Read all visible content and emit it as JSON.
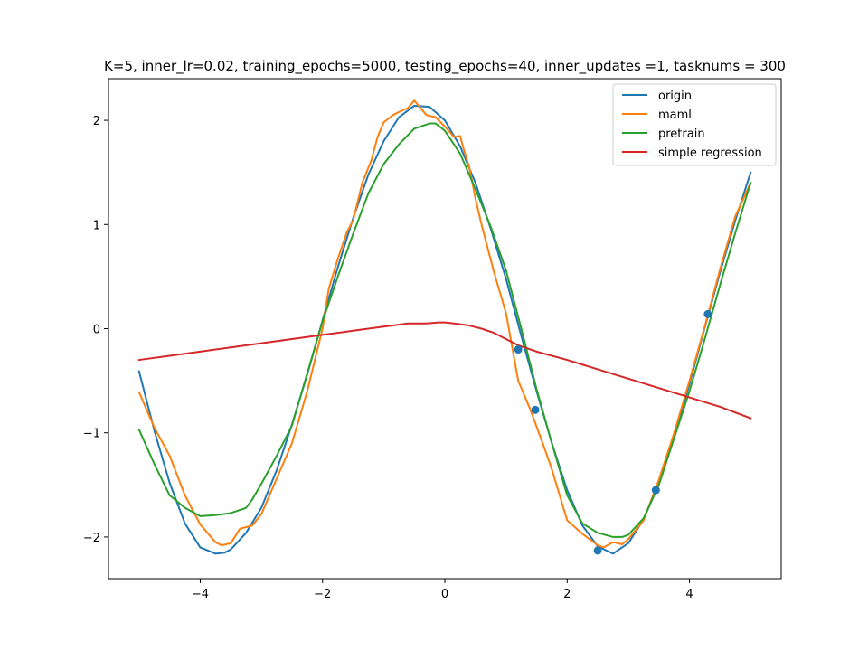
{
  "chart_data": {
    "type": "line",
    "title": "K=5, inner_lr=0.02, training_epochs=5000, testing_epochs=40, inner_updates =1, tasknums = 300",
    "xlabel": "",
    "ylabel": "",
    "xlim": [
      -5.5,
      5.5
    ],
    "ylim": [
      -2.4,
      2.4
    ],
    "xticks": [
      -4,
      -2,
      0,
      2,
      4
    ],
    "yticks": [
      -2,
      -1,
      0,
      1,
      2
    ],
    "xtick_labels": [
      "−4",
      "−2",
      "0",
      "2",
      "4"
    ],
    "ytick_labels": [
      "−2",
      "−1",
      "0",
      "1",
      "2"
    ],
    "grid": false,
    "legend_position": "top-right",
    "series": [
      {
        "name": "origin",
        "color": "#1f77b4",
        "x": [
          -5.0,
          -4.75,
          -4.5,
          -4.25,
          -4.0,
          -3.75,
          -3.6,
          -3.5,
          -3.25,
          -3.0,
          -2.75,
          -2.5,
          -2.25,
          -2.0,
          -1.75,
          -1.5,
          -1.25,
          -1.0,
          -0.75,
          -0.5,
          -0.25,
          0.0,
          0.25,
          0.5,
          0.75,
          1.0,
          1.25,
          1.5,
          1.75,
          2.0,
          2.25,
          2.5,
          2.75,
          3.0,
          3.25,
          3.5,
          3.75,
          4.0,
          4.25,
          4.5,
          4.75,
          5.0
        ],
        "y": [
          -0.41,
          -0.98,
          -1.48,
          -1.87,
          -2.1,
          -2.16,
          -2.15,
          -2.12,
          -1.96,
          -1.72,
          -1.36,
          -0.92,
          -0.44,
          0.08,
          0.59,
          1.06,
          1.48,
          1.8,
          2.03,
          2.14,
          2.13,
          2.0,
          1.75,
          1.4,
          0.96,
          0.48,
          -0.07,
          -0.6,
          -1.1,
          -1.55,
          -1.89,
          -2.09,
          -2.16,
          -2.06,
          -1.83,
          -1.49,
          -1.04,
          -0.53,
          0.01,
          0.54,
          1.04,
          1.5
        ]
      },
      {
        "name": "maml",
        "color": "#ff7f0e",
        "x": [
          -5.0,
          -4.75,
          -4.5,
          -4.25,
          -4.0,
          -3.75,
          -3.65,
          -3.5,
          -3.35,
          -3.15,
          -3.0,
          -2.75,
          -2.5,
          -2.25,
          -2.0,
          -1.9,
          -1.75,
          -1.6,
          -1.5,
          -1.35,
          -1.2,
          -1.1,
          -1.0,
          -0.85,
          -0.75,
          -0.6,
          -0.5,
          -0.4,
          -0.3,
          -0.15,
          0.0,
          0.15,
          0.25,
          0.3,
          0.4,
          0.5,
          0.6,
          0.8,
          1.0,
          1.2,
          1.4,
          1.6,
          1.75,
          2.0,
          2.25,
          2.5,
          2.6,
          2.75,
          2.9,
          3.0,
          3.25,
          3.5,
          3.75,
          4.0,
          4.25,
          4.5,
          4.75,
          5.0
        ],
        "y": [
          -0.61,
          -0.95,
          -1.22,
          -1.6,
          -1.88,
          -2.05,
          -2.08,
          -2.06,
          -1.92,
          -1.89,
          -1.78,
          -1.44,
          -1.1,
          -0.6,
          0.0,
          0.38,
          0.67,
          0.93,
          1.04,
          1.4,
          1.62,
          1.84,
          1.98,
          2.05,
          2.08,
          2.12,
          2.19,
          2.12,
          2.05,
          2.03,
          1.94,
          1.84,
          1.85,
          1.74,
          1.55,
          1.25,
          1.0,
          0.55,
          0.15,
          -0.5,
          -0.78,
          -1.1,
          -1.35,
          -1.84,
          -1.97,
          -2.08,
          -2.1,
          -2.05,
          -2.07,
          -2.02,
          -1.84,
          -1.45,
          -1.0,
          -0.5,
          0.02,
          0.57,
          1.08,
          1.4
        ]
      },
      {
        "name": "pretrain",
        "color": "#2ca02c",
        "x": [
          -5.0,
          -4.75,
          -4.5,
          -4.25,
          -4.0,
          -3.75,
          -3.5,
          -3.25,
          -3.15,
          -3.0,
          -2.75,
          -2.5,
          -2.25,
          -2.0,
          -1.75,
          -1.5,
          -1.25,
          -1.0,
          -0.75,
          -0.5,
          -0.25,
          -0.15,
          0.0,
          0.25,
          0.5,
          0.75,
          1.0,
          1.25,
          1.5,
          1.75,
          2.0,
          2.25,
          2.5,
          2.75,
          2.9,
          3.0,
          3.25,
          3.5,
          3.75,
          4.0,
          4.25,
          4.5,
          4.75,
          5.0
        ],
        "y": [
          -0.97,
          -1.3,
          -1.6,
          -1.72,
          -1.8,
          -1.79,
          -1.77,
          -1.72,
          -1.64,
          -1.49,
          -1.22,
          -0.93,
          -0.43,
          0.07,
          0.5,
          0.91,
          1.3,
          1.58,
          1.77,
          1.92,
          1.97,
          1.97,
          1.9,
          1.68,
          1.34,
          0.98,
          0.56,
          0.0,
          -0.58,
          -1.1,
          -1.6,
          -1.87,
          -1.96,
          -2.0,
          -2.0,
          -1.98,
          -1.82,
          -1.5,
          -1.05,
          -0.6,
          -0.1,
          0.42,
          0.92,
          1.4
        ]
      },
      {
        "name": "simple regression",
        "color": "#d62728",
        "x": [
          -5.0,
          -4.5,
          -4.0,
          -3.5,
          -3.0,
          -2.5,
          -2.0,
          -1.5,
          -1.0,
          -0.6,
          -0.3,
          -0.1,
          0.0,
          0.15,
          0.4,
          0.6,
          0.8,
          1.0,
          1.2,
          1.5,
          2.0,
          2.5,
          3.0,
          3.5,
          4.0,
          4.5,
          5.0
        ],
        "y": [
          -0.3,
          -0.26,
          -0.22,
          -0.18,
          -0.14,
          -0.1,
          -0.06,
          -0.02,
          0.02,
          0.05,
          0.05,
          0.06,
          0.06,
          0.05,
          0.03,
          0.0,
          -0.04,
          -0.1,
          -0.16,
          -0.22,
          -0.3,
          -0.39,
          -0.48,
          -0.57,
          -0.66,
          -0.75,
          -0.86
        ]
      }
    ],
    "scatter_points": {
      "color": "#1f77b4",
      "x": [
        1.2,
        1.48,
        2.5,
        3.45,
        4.3
      ],
      "y": [
        -0.2,
        -0.78,
        -2.13,
        -1.55,
        0.14
      ]
    }
  }
}
